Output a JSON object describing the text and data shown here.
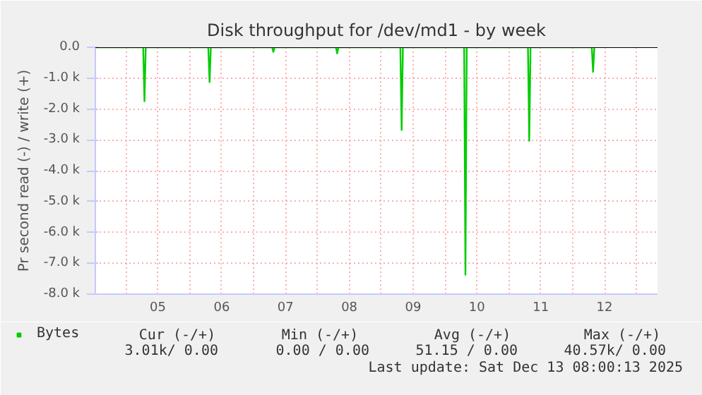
{
  "chart_data": {
    "type": "line",
    "title": "Disk throughput for /dev/md1 - by week",
    "ylabel": "Pr second read (-) / write (+)",
    "x": [
      4.52,
      5.27,
      5.29,
      5.31,
      6.29,
      6.31,
      6.33,
      7.29,
      7.31,
      7.33,
      8.29,
      8.31,
      8.33,
      9.3,
      9.32,
      9.34,
      10.3,
      10.32,
      10.34,
      11.3,
      11.32,
      11.34,
      12.3,
      12.32,
      12.34
    ],
    "series": [
      {
        "name": "Bytes",
        "color": "#00cc00",
        "values": [
          0,
          0,
          -1750,
          0,
          0,
          -1130,
          0,
          0,
          -150,
          0,
          0,
          -200,
          0,
          0,
          -2680,
          0,
          0,
          -7370,
          0,
          0,
          -3030,
          0,
          0,
          -800,
          0
        ]
      }
    ],
    "xlim": [
      4.52,
      13.33
    ],
    "xticks": [
      {
        "value": 5,
        "label": null
      },
      {
        "value": 5.5,
        "label": "05"
      },
      {
        "value": 6,
        "label": null
      },
      {
        "value": 6.5,
        "label": "06"
      },
      {
        "value": 7,
        "label": null
      },
      {
        "value": 7.5,
        "label": "07"
      },
      {
        "value": 8,
        "label": null
      },
      {
        "value": 8.5,
        "label": "08"
      },
      {
        "value": 9,
        "label": null
      },
      {
        "value": 9.5,
        "label": "09"
      },
      {
        "value": 10,
        "label": null
      },
      {
        "value": 10.5,
        "label": "10"
      },
      {
        "value": 11,
        "label": null
      },
      {
        "value": 11.5,
        "label": "11"
      },
      {
        "value": 12,
        "label": null
      },
      {
        "value": 12.5,
        "label": "12"
      },
      {
        "value": 13,
        "label": null
      }
    ],
    "ylim": [
      -8000,
      0
    ],
    "yticks": [
      {
        "value": 0,
        "label": "0.0"
      },
      {
        "value": -1000,
        "label": "-1.0 k"
      },
      {
        "value": -2000,
        "label": "-2.0 k"
      },
      {
        "value": -3000,
        "label": "-3.0 k"
      },
      {
        "value": -4000,
        "label": "-4.0 k"
      },
      {
        "value": -5000,
        "label": "-5.0 k"
      },
      {
        "value": -6000,
        "label": "-6.0 k"
      },
      {
        "value": -7000,
        "label": "-7.0 k"
      },
      {
        "value": -8000,
        "label": "-8.0 k"
      }
    ],
    "ref_lines": [
      {
        "axis": "y",
        "value": 0,
        "label": null,
        "color": "#000000"
      }
    ],
    "grid": true,
    "legend": "bottom left",
    "annotations": [
      "Cur (-/+)",
      "Min (-/+)",
      "Avg (-/+)",
      "Max (-/+)",
      "3.01k/  0.00",
      "0.00 /  0.00",
      "51.15 /  0.00",
      "40.57k/  0.00",
      "Last update: Sat Dec 13 08:00:13 2025"
    ]
  }
}
